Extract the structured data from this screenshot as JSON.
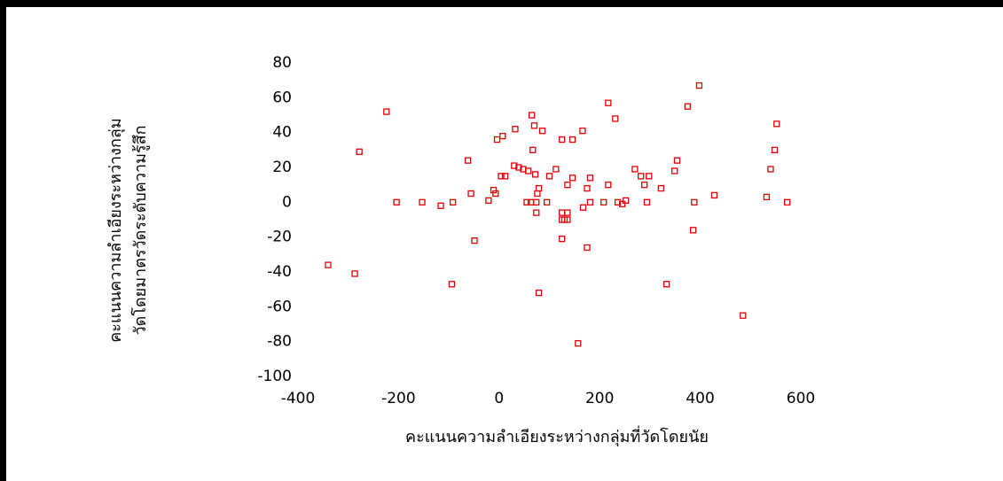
{
  "chart_data": {
    "type": "scatter",
    "xlabel": "คะแนนความลำเอียงระหว่างกลุ่มที่วัดโดยนัย",
    "ylabel": [
      "คะแนนความลำเอียงระหว่างกลุ่ม",
      "วัดโดยมาตรวัดระดับความรู้สึก"
    ],
    "xlim": [
      -400,
      600
    ],
    "xticks": [
      -400,
      -200,
      0,
      200,
      400,
      600
    ],
    "ylim": [
      -100,
      80
    ],
    "yticks": [
      80,
      60,
      40,
      20,
      0,
      -20,
      -40,
      -60,
      -80,
      -100
    ],
    "color": "#e00000",
    "x": [
      -340,
      -287,
      -278,
      -224,
      -204,
      -153,
      -116,
      -92,
      -94,
      -62,
      -56,
      -49,
      -21,
      -11,
      -7,
      -4,
      7,
      4,
      12,
      32,
      30,
      39,
      48,
      58,
      55,
      63,
      67,
      65,
      70,
      74,
      74,
      72,
      76,
      79,
      79,
      86,
      95,
      100,
      113,
      125,
      125,
      125,
      125,
      130,
      136,
      136,
      136,
      146,
      146,
      157,
      166,
      167,
      175,
      175,
      181,
      181,
      208,
      217,
      217,
      231,
      236,
      245,
      252,
      270,
      282,
      289,
      294,
      298,
      322,
      333,
      349,
      354,
      375,
      388,
      386,
      398,
      428,
      485,
      532,
      540,
      548,
      552,
      573
    ],
    "y": [
      -36,
      -41,
      29,
      52,
      0,
      0,
      -2,
      0,
      -47,
      24,
      5,
      -22,
      1,
      7,
      5,
      36,
      38,
      15,
      15,
      42,
      21,
      20,
      19,
      18,
      0,
      0,
      30,
      50,
      44,
      0,
      -6,
      16,
      5,
      8,
      -52,
      41,
      0,
      15,
      19,
      36,
      -6,
      -21,
      -10,
      -10,
      -6,
      -10,
      10,
      36,
      14,
      -81,
      41,
      -3,
      -26,
      8,
      14,
      0,
      0,
      10,
      57,
      48,
      0,
      -1,
      1,
      19,
      15,
      10,
      0,
      15,
      8,
      -47,
      18,
      24,
      55,
      0,
      -16,
      67,
      4,
      -65,
      3,
      19,
      30,
      45,
      0
    ]
  }
}
